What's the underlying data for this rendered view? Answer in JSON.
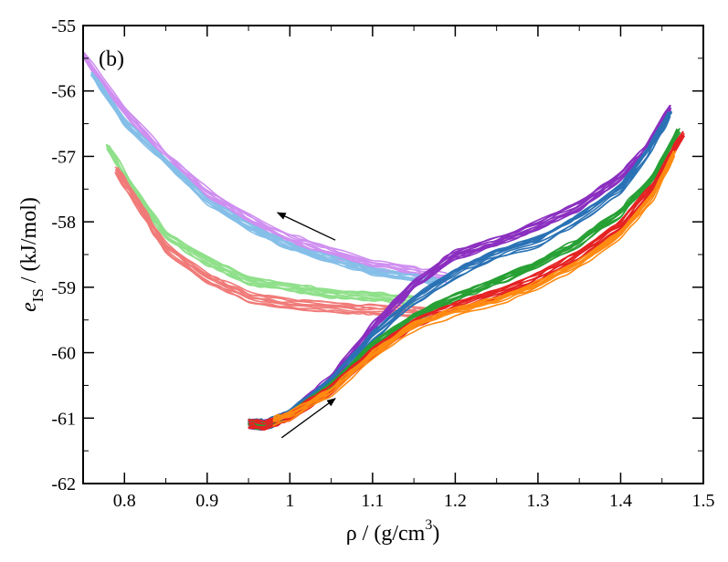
{
  "chart_data": {
    "type": "line",
    "panel_label": "(b)",
    "xlabel": "ρ / (g/cm",
    "xlabel_sup": "3",
    "xlabel_close": ")",
    "ylabel_var": "e",
    "ylabel_sub": "IS",
    "ylabel_rest": " / (kJ/mol)",
    "xlim": [
      0.75,
      1.5
    ],
    "ylim": [
      -62,
      -55
    ],
    "x_ticks": [
      0.8,
      0.9,
      1,
      1.1,
      1.2,
      1.3,
      1.4,
      1.5
    ],
    "x_tick_labels": [
      "0.8",
      "0.9",
      "1",
      "1.1",
      "1.2",
      "1.3",
      "1.4",
      "1.5"
    ],
    "y_ticks": [
      -62,
      -61,
      -60,
      -59,
      -58,
      -57,
      -56,
      -55
    ],
    "y_tick_labels": [
      "-62",
      "-61",
      "-60",
      "-59",
      "-58",
      "-57",
      "-56",
      "-55"
    ],
    "annotations": [
      {
        "label": "decompression-arrow",
        "from": [
          1.055,
          -58.28
        ],
        "to": [
          0.985,
          -57.86
        ]
      },
      {
        "label": "compression-arrow",
        "from": [
          0.99,
          -61.3
        ],
        "to": [
          1.055,
          -60.7
        ]
      }
    ],
    "series": [
      {
        "name": "decompression-violet",
        "color": "#cf8ff0",
        "copies": 10,
        "points": [
          [
            1.19,
            -58.85
          ],
          [
            1.15,
            -58.75
          ],
          [
            1.1,
            -58.65
          ],
          [
            1.05,
            -58.45
          ],
          [
            1.0,
            -58.25
          ],
          [
            0.95,
            -57.95
          ],
          [
            0.9,
            -57.55
          ],
          [
            0.85,
            -57.0
          ],
          [
            0.8,
            -56.3
          ],
          [
            0.75,
            -55.45
          ]
        ]
      },
      {
        "name": "decompression-light-blue",
        "color": "#85bfe8",
        "copies": 10,
        "points": [
          [
            1.18,
            -58.95
          ],
          [
            1.15,
            -58.88
          ],
          [
            1.1,
            -58.78
          ],
          [
            1.05,
            -58.6
          ],
          [
            1.0,
            -58.4
          ],
          [
            0.95,
            -58.1
          ],
          [
            0.9,
            -57.7
          ],
          [
            0.85,
            -57.1
          ],
          [
            0.8,
            -56.5
          ],
          [
            0.76,
            -55.75
          ]
        ]
      },
      {
        "name": "decompression-light-green",
        "color": "#8fe08a",
        "copies": 10,
        "points": [
          [
            1.15,
            -59.2
          ],
          [
            1.1,
            -59.15
          ],
          [
            1.05,
            -59.1
          ],
          [
            1.0,
            -59.0
          ],
          [
            0.95,
            -58.9
          ],
          [
            0.9,
            -58.6
          ],
          [
            0.85,
            -58.2
          ],
          [
            0.81,
            -57.5
          ],
          [
            0.78,
            -56.85
          ]
        ]
      },
      {
        "name": "decompression-salmon",
        "color": "#f07a78",
        "copies": 10,
        "points": [
          [
            1.17,
            -59.38
          ],
          [
            1.12,
            -59.35
          ],
          [
            1.07,
            -59.32
          ],
          [
            1.0,
            -59.25
          ],
          [
            0.95,
            -59.15
          ],
          [
            0.9,
            -58.85
          ],
          [
            0.85,
            -58.4
          ],
          [
            0.82,
            -57.8
          ],
          [
            0.79,
            -57.2
          ]
        ]
      },
      {
        "name": "compression-violet",
        "color": "#8b2fc0",
        "copies": 10,
        "points": [
          [
            0.95,
            -61.08
          ],
          [
            0.97,
            -61.1
          ],
          [
            1.0,
            -60.95
          ],
          [
            1.05,
            -60.4
          ],
          [
            1.1,
            -59.6
          ],
          [
            1.15,
            -58.95
          ],
          [
            1.2,
            -58.5
          ],
          [
            1.25,
            -58.3
          ],
          [
            1.3,
            -58.05
          ],
          [
            1.35,
            -57.75
          ],
          [
            1.4,
            -57.3
          ],
          [
            1.43,
            -56.9
          ],
          [
            1.46,
            -56.25
          ]
        ]
      },
      {
        "name": "compression-steel-blue",
        "color": "#2a72b5",
        "copies": 10,
        "points": [
          [
            0.95,
            -61.08
          ],
          [
            0.97,
            -61.1
          ],
          [
            1.0,
            -60.95
          ],
          [
            1.05,
            -60.45
          ],
          [
            1.1,
            -59.75
          ],
          [
            1.15,
            -59.2
          ],
          [
            1.2,
            -58.8
          ],
          [
            1.25,
            -58.5
          ],
          [
            1.3,
            -58.3
          ],
          [
            1.35,
            -57.95
          ],
          [
            1.4,
            -57.5
          ],
          [
            1.43,
            -57.0
          ],
          [
            1.46,
            -56.35
          ]
        ]
      },
      {
        "name": "compression-green",
        "color": "#27a034",
        "copies": 10,
        "points": [
          [
            0.95,
            -61.08
          ],
          [
            0.97,
            -61.1
          ],
          [
            1.0,
            -60.95
          ],
          [
            1.05,
            -60.5
          ],
          [
            1.1,
            -59.9
          ],
          [
            1.15,
            -59.45
          ],
          [
            1.2,
            -59.15
          ],
          [
            1.25,
            -58.9
          ],
          [
            1.3,
            -58.65
          ],
          [
            1.35,
            -58.3
          ],
          [
            1.4,
            -57.85
          ],
          [
            1.44,
            -57.3
          ],
          [
            1.47,
            -56.6
          ]
        ]
      },
      {
        "name": "compression-red",
        "color": "#e52222",
        "copies": 10,
        "points": [
          [
            0.95,
            -61.08
          ],
          [
            0.97,
            -61.1
          ],
          [
            1.0,
            -60.97
          ],
          [
            1.05,
            -60.55
          ],
          [
            1.1,
            -60.0
          ],
          [
            1.15,
            -59.55
          ],
          [
            1.2,
            -59.3
          ],
          [
            1.25,
            -59.1
          ],
          [
            1.3,
            -58.85
          ],
          [
            1.35,
            -58.5
          ],
          [
            1.4,
            -58.05
          ],
          [
            1.44,
            -57.45
          ],
          [
            1.475,
            -56.65
          ]
        ]
      },
      {
        "name": "compression-orange",
        "color": "#ff8a12",
        "copies": 10,
        "points": [
          [
            0.98,
            -61.05
          ],
          [
            1.0,
            -60.97
          ],
          [
            1.05,
            -60.6
          ],
          [
            1.1,
            -60.05
          ],
          [
            1.15,
            -59.6
          ],
          [
            1.2,
            -59.38
          ],
          [
            1.25,
            -59.22
          ],
          [
            1.3,
            -58.98
          ],
          [
            1.35,
            -58.65
          ],
          [
            1.4,
            -58.2
          ],
          [
            1.44,
            -57.6
          ],
          [
            1.465,
            -56.95
          ]
        ]
      }
    ]
  }
}
